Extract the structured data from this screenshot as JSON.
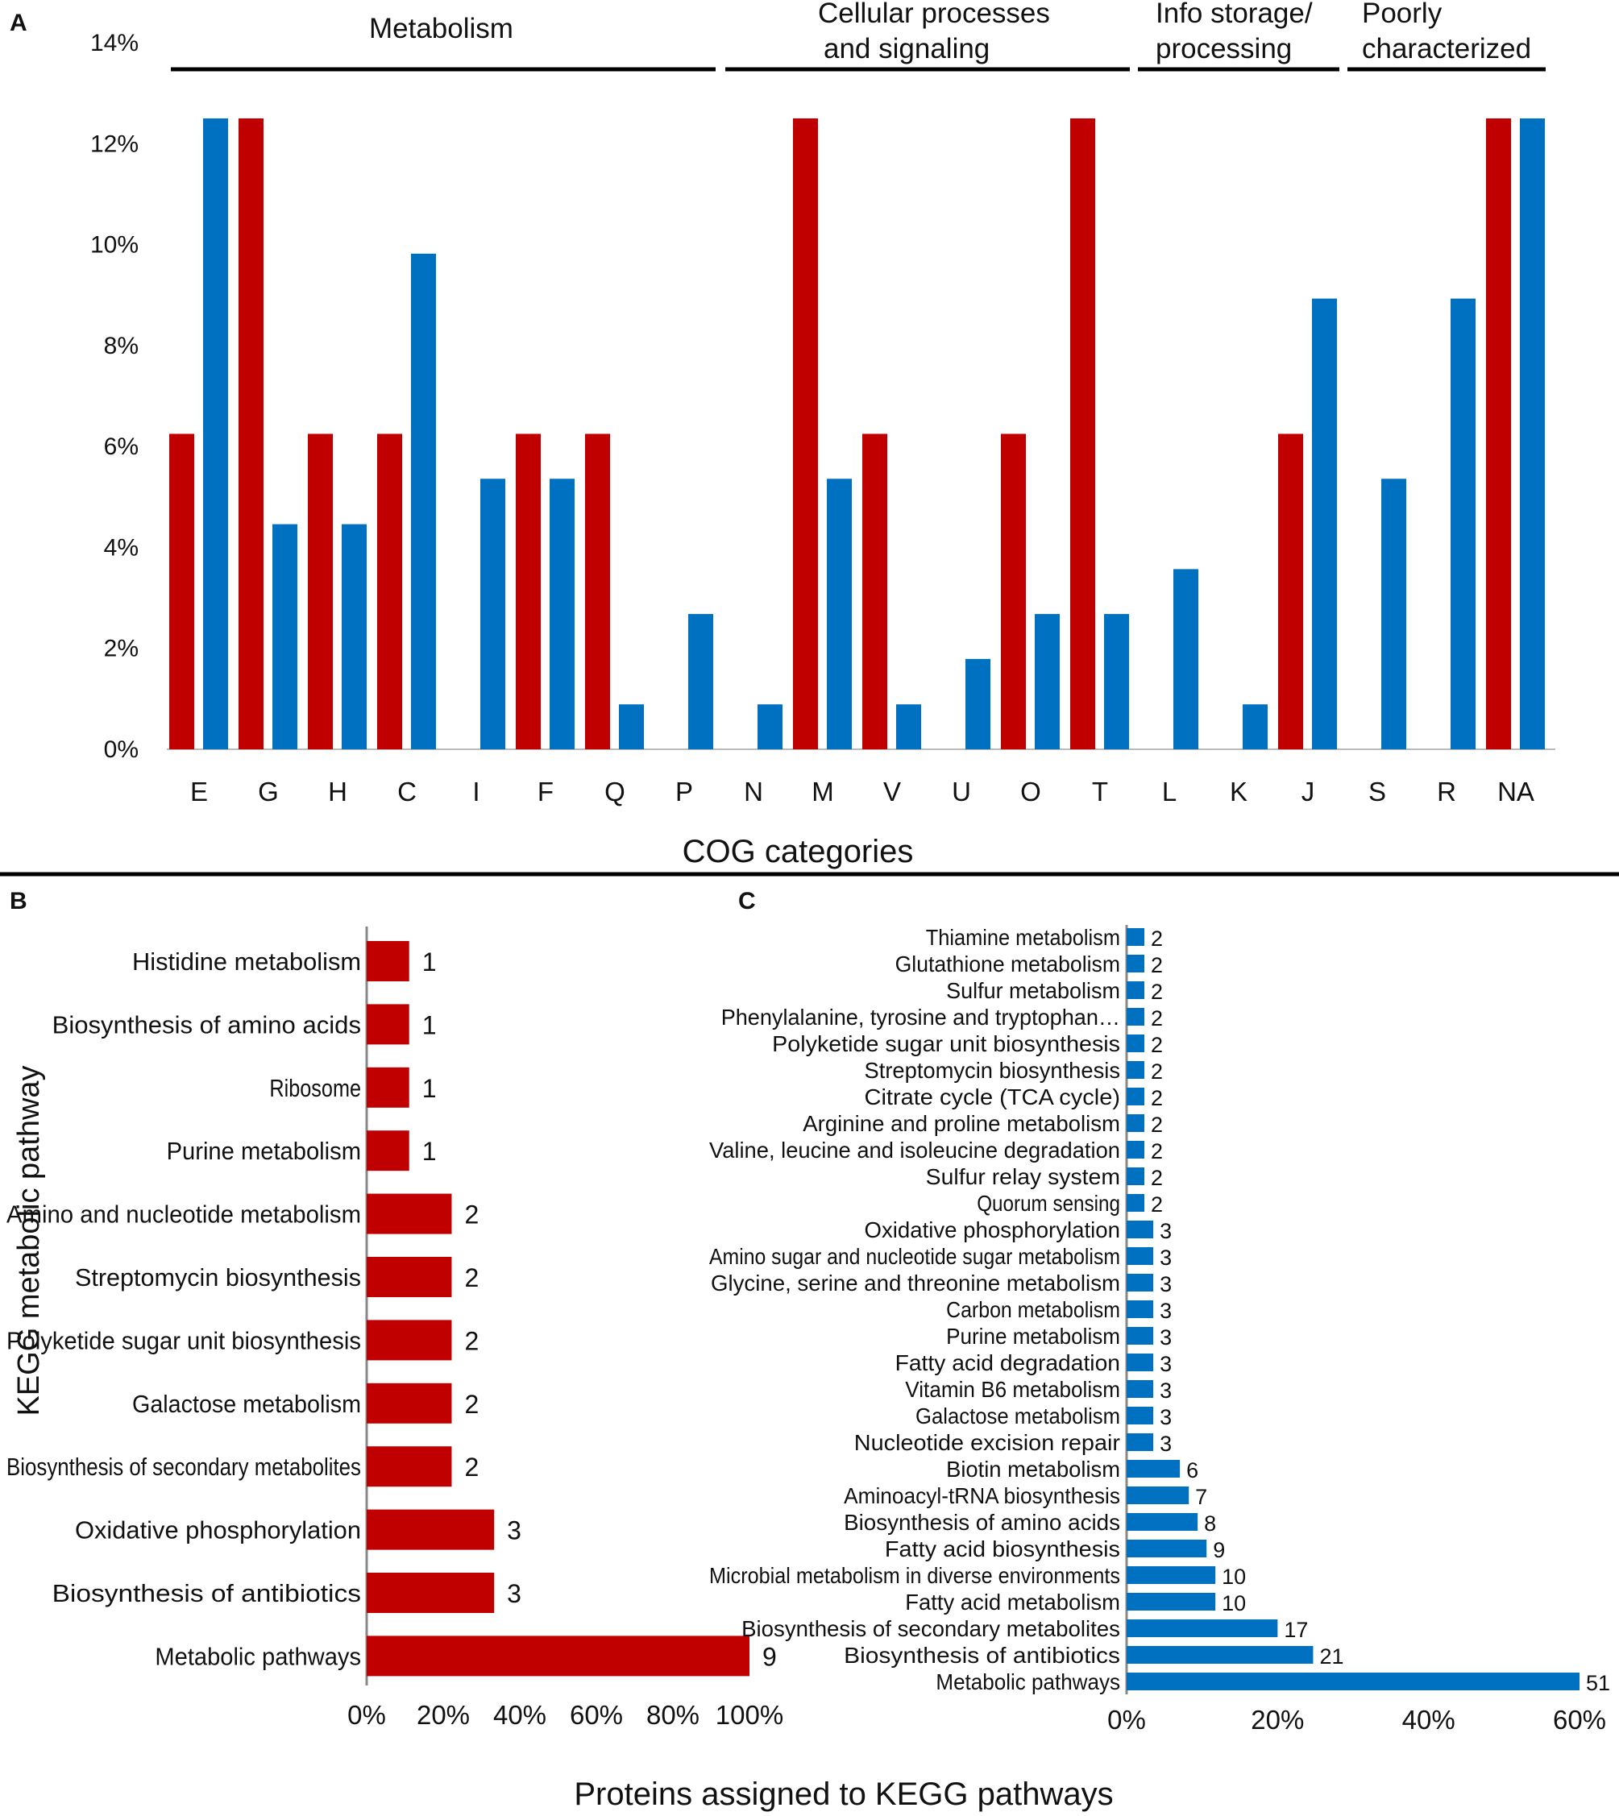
{
  "colors": {
    "red": "#c00000",
    "blue": "#0070c0",
    "text": "#111111"
  },
  "panel_a": {
    "letter": "A",
    "xlabel": "COG categories",
    "group_labels": [
      {
        "line1": "Metabolism",
        "line2": ""
      },
      {
        "line1": "Cellular processes",
        "line2": "and signaling"
      },
      {
        "line1": "Info storage/",
        "line2": "processing"
      },
      {
        "line1": "Poorly",
        "line2": "characterized"
      }
    ]
  },
  "panel_b": {
    "letter": "B",
    "ylabel": "KEGG metabolic pathway"
  },
  "panel_c": {
    "letter": "C"
  },
  "shared_xlabel": "Proteins assigned to KEGG pathways",
  "chart_data": [
    {
      "type": "bar",
      "title": "",
      "xlabel": "COG categories",
      "ylabel": "",
      "ylim": [
        0,
        14
      ],
      "yticks": [
        "0%",
        "2%",
        "4%",
        "6%",
        "8%",
        "10%",
        "12%",
        "14%"
      ],
      "categories": [
        "E",
        "G",
        "H",
        "C",
        "I",
        "F",
        "Q",
        "P",
        "N",
        "M",
        "V",
        "U",
        "O",
        "T",
        "L",
        "K",
        "J",
        "S",
        "R",
        "NA"
      ],
      "series": [
        {
          "name": "red",
          "values": [
            6.25,
            12.5,
            6.25,
            6.25,
            0,
            6.25,
            6.25,
            0,
            0,
            12.5,
            6.25,
            0,
            6.25,
            12.5,
            0,
            0,
            6.25,
            0,
            0,
            12.5
          ]
        },
        {
          "name": "blue",
          "values": [
            12.5,
            4.46,
            4.46,
            9.82,
            5.36,
            5.36,
            0.89,
            2.68,
            0.89,
            5.36,
            0.89,
            1.79,
            2.68,
            2.68,
            3.57,
            0.89,
            8.93,
            5.36,
            8.93,
            12.5
          ]
        }
      ],
      "groups": [
        {
          "name": "Metabolism",
          "categories": [
            "E",
            "G",
            "H",
            "C",
            "I",
            "F",
            "Q",
            "P"
          ]
        },
        {
          "name": "Cellular processes and signaling",
          "categories": [
            "N",
            "M",
            "V",
            "U",
            "O",
            "T"
          ]
        },
        {
          "name": "Info storage/ processing",
          "categories": [
            "L",
            "K",
            "J"
          ]
        },
        {
          "name": "Poorly characterized",
          "categories": [
            "S",
            "R",
            "NA"
          ]
        }
      ]
    },
    {
      "type": "bar",
      "orientation": "horizontal",
      "title": "",
      "ylabel": "KEGG metabolic pathway",
      "xlabel": "Proteins assigned to KEGG pathways",
      "xlim": [
        0,
        100
      ],
      "xticks": [
        "0%",
        "20%",
        "40%",
        "60%",
        "80%",
        "100%"
      ],
      "categories": [
        "Histidine metabolism",
        "Biosynthesis of amino acids",
        "Ribosome",
        "Purine metabolism",
        "Amino and nucleotide metabolism",
        "Streptomycin biosynthesis",
        "Polyketide sugar unit biosynthesis",
        "Galactose metabolism",
        "Biosynthesis of secondary metabolites",
        "Oxidative phosphorylation",
        "Biosynthesis of antibiotics",
        "Metabolic pathways"
      ],
      "counts": [
        1,
        1,
        1,
        1,
        2,
        2,
        2,
        2,
        2,
        3,
        3,
        9
      ],
      "values": [
        11.1,
        11.1,
        11.1,
        11.1,
        22.2,
        22.2,
        22.2,
        22.2,
        22.2,
        33.3,
        33.3,
        100
      ]
    },
    {
      "type": "bar",
      "orientation": "horizontal",
      "title": "",
      "xlabel": "Proteins assigned to KEGG pathways",
      "xlim": [
        0,
        60
      ],
      "xticks": [
        "0%",
        "20%",
        "40%",
        "60%"
      ],
      "categories": [
        "Thiamine metabolism",
        "Glutathione metabolism",
        "Sulfur metabolism",
        "Phenylalanine, tyrosine and tryptophan…",
        "Polyketide sugar unit biosynthesis",
        "Streptomycin biosynthesis",
        "Citrate cycle (TCA cycle)",
        "Arginine and proline metabolism",
        "Valine, leucine and isoleucine degradation",
        "Sulfur relay system",
        "Quorum sensing",
        "Oxidative phosphorylation",
        "Amino sugar and nucleotide sugar metabolism",
        "Glycine, serine and threonine metabolism",
        "Carbon metabolism",
        "Purine metabolism",
        "Fatty acid degradation",
        "Vitamin B6 metabolism",
        "Galactose metabolism",
        "Nucleotide excision repair",
        "Biotin metabolism",
        "Aminoacyl-tRNA biosynthesis",
        "Biosynthesis of amino acids",
        "Fatty acid biosynthesis",
        "Microbial metabolism in diverse environments",
        "Fatty acid metabolism",
        "Biosynthesis of secondary metabolites",
        "Biosynthesis of antibiotics",
        "Metabolic pathways"
      ],
      "counts": [
        2,
        2,
        2,
        2,
        2,
        2,
        2,
        2,
        2,
        2,
        2,
        3,
        3,
        3,
        3,
        3,
        3,
        3,
        3,
        3,
        6,
        7,
        8,
        9,
        10,
        10,
        17,
        21,
        51
      ],
      "values": [
        2.35,
        2.35,
        2.35,
        2.35,
        2.35,
        2.35,
        2.35,
        2.35,
        2.35,
        2.35,
        2.35,
        3.53,
        3.53,
        3.53,
        3.53,
        3.53,
        3.53,
        3.53,
        3.53,
        3.53,
        7.06,
        8.24,
        9.41,
        10.59,
        11.76,
        11.76,
        20.0,
        24.71,
        60.0
      ]
    }
  ]
}
